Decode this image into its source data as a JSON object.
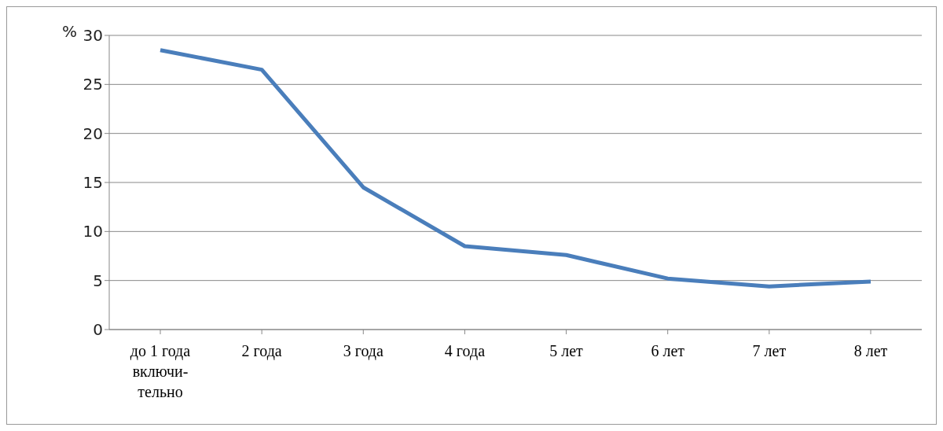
{
  "chart_data": {
    "type": "line",
    "ylabel": "%",
    "categories": [
      "до 1 года\nвключи-\nтельно",
      "2 года",
      "3 года",
      "4 года",
      "5 лет",
      "6 лет",
      "7 лет",
      "8 лет"
    ],
    "series": [
      {
        "color": "#4a7ebb",
        "values": [
          28.5,
          26.5,
          14.5,
          8.5,
          7.6,
          5.2,
          4.4,
          4.9
        ]
      }
    ],
    "ylim": [
      0,
      30
    ],
    "yticks": [
      0,
      5,
      10,
      15,
      20,
      25,
      30
    ],
    "grid": "y",
    "legend": false,
    "marker": "none",
    "line_style": "solid"
  }
}
